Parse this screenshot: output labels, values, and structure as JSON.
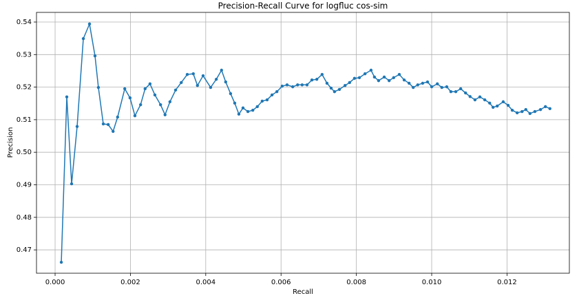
{
  "chart_data": {
    "type": "line",
    "title": "Precision-Recall Curve for logfluc cos-sim",
    "x_label": "Recall",
    "y_label": "Precision",
    "x": [
      0.000165,
      0.000311,
      0.000439,
      0.000585,
      0.00075,
      0.000914,
      0.00106,
      0.00115,
      0.00128,
      0.00141,
      0.00154,
      0.00166,
      0.00185,
      0.00199,
      0.00212,
      0.00227,
      0.00239,
      0.00252,
      0.00265,
      0.0028,
      0.00292,
      0.00305,
      0.0032,
      0.00335,
      0.00351,
      0.00367,
      0.00378,
      0.00393,
      0.00413,
      0.00428,
      0.00442,
      0.00453,
      0.00466,
      0.00477,
      0.00488,
      0.00499,
      0.00512,
      0.00525,
      0.00537,
      0.0055,
      0.00563,
      0.00576,
      0.00589,
      0.00603,
      0.00616,
      0.00631,
      0.00644,
      0.00656,
      0.00669,
      0.00682,
      0.00695,
      0.00709,
      0.00722,
      0.00733,
      0.00742,
      0.00755,
      0.0077,
      0.00782,
      0.00795,
      0.00808,
      0.00823,
      0.00839,
      0.00848,
      0.00859,
      0.00874,
      0.00887,
      0.00899,
      0.00914,
      0.00927,
      0.0094,
      0.00951,
      0.00963,
      0.00976,
      0.00989,
      0.01,
      0.01015,
      0.01027,
      0.0104,
      0.01051,
      0.01064,
      0.01077,
      0.0109,
      0.01102,
      0.01115,
      0.01128,
      0.01141,
      0.01154,
      0.01163,
      0.01174,
      0.0119,
      0.01203,
      0.01214,
      0.01227,
      0.0124,
      0.0125,
      0.01261,
      0.01274,
      0.01289,
      0.01302,
      0.01314
    ],
    "series": [
      {
        "name": "logfluc cos-sim",
        "color": "#1f77b4",
        "values": [
          0.4662,
          0.517,
          0.4903,
          0.5079,
          0.5349,
          0.5394,
          0.5296,
          0.5199,
          0.5087,
          0.5085,
          0.5064,
          0.5108,
          0.5195,
          0.5167,
          0.5112,
          0.5146,
          0.5195,
          0.521,
          0.5176,
          0.5146,
          0.5115,
          0.5155,
          0.5191,
          0.5214,
          0.5239,
          0.5241,
          0.5205,
          0.5235,
          0.5199,
          0.5224,
          0.5252,
          0.5216,
          0.518,
          0.5151,
          0.5117,
          0.5136,
          0.5125,
          0.5129,
          0.514,
          0.5157,
          0.5161,
          0.5176,
          0.5186,
          0.5203,
          0.5207,
          0.5201,
          0.5207,
          0.5207,
          0.5207,
          0.5222,
          0.5224,
          0.5239,
          0.5212,
          0.5197,
          0.5186,
          0.5193,
          0.5205,
          0.5214,
          0.5227,
          0.5229,
          0.5241,
          0.5252,
          0.5231,
          0.522,
          0.5231,
          0.522,
          0.5229,
          0.5239,
          0.5222,
          0.5212,
          0.5199,
          0.5207,
          0.5212,
          0.5216,
          0.5201,
          0.521,
          0.5199,
          0.5201,
          0.5186,
          0.5186,
          0.5195,
          0.5182,
          0.5171,
          0.5161,
          0.517,
          0.5161,
          0.5151,
          0.5138,
          0.5142,
          0.5155,
          0.5144,
          0.5129,
          0.5121,
          0.5125,
          0.5131,
          0.5119,
          0.5125,
          0.5131,
          0.514,
          0.5134
        ]
      }
    ],
    "xlim": [
      -0.000494,
      0.013656
    ],
    "ylim": [
      0.46283,
      0.54296
    ],
    "xticks": [
      {
        "value": 0,
        "label": "0.000"
      },
      0.002,
      0.004,
      0.006,
      0.008,
      {
        "value": 0.01,
        "label": "0.010"
      },
      0.012
    ],
    "yticks": [
      0.47,
      0.48,
      0.49,
      {
        "value": 0.5,
        "label": "0.50"
      },
      0.51,
      0.52,
      0.53,
      0.54
    ],
    "grid": true
  }
}
